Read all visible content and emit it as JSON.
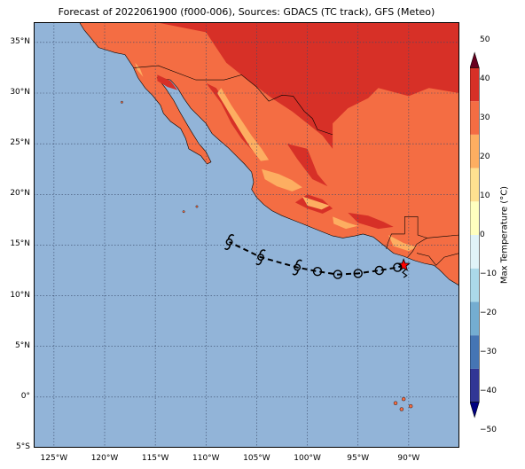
{
  "title": "Forecast of 2022061900 (f000-006), Sources: GDACS (TC track), GFS (Meteo)",
  "map": {
    "lon_range": [
      -127,
      -85
    ],
    "lat_range": [
      -5,
      37
    ],
    "gridlines": "dotted",
    "lat_ticks": [
      {
        "value": 35,
        "label": "35°N"
      },
      {
        "value": 30,
        "label": "30°N"
      },
      {
        "value": 25,
        "label": "25°N"
      },
      {
        "value": 20,
        "label": "20°N"
      },
      {
        "value": 15,
        "label": "15°N"
      },
      {
        "value": 10,
        "label": "10°N"
      },
      {
        "value": 5,
        "label": "5°N"
      },
      {
        "value": 0,
        "label": "0°"
      },
      {
        "value": -5,
        "label": "5°S"
      }
    ],
    "lon_ticks": [
      {
        "value": -125,
        "label": "125°W"
      },
      {
        "value": -120,
        "label": "120°W"
      },
      {
        "value": -115,
        "label": "115°W"
      },
      {
        "value": -110,
        "label": "110°W"
      },
      {
        "value": -105,
        "label": "105°W"
      },
      {
        "value": -100,
        "label": "100°W"
      },
      {
        "value": -95,
        "label": "95°W"
      },
      {
        "value": -90,
        "label": "90°W"
      }
    ],
    "ocean_color": "#92b4d8",
    "storm_track": {
      "current_position": {
        "lon": -90.5,
        "lat": 13.0
      },
      "points": [
        {
          "lon": -90.5,
          "lat": 13.0,
          "marker": "star"
        },
        {
          "lon": -91.1,
          "lat": 12.8,
          "marker": "circle"
        },
        {
          "lon": -92.9,
          "lat": 12.5,
          "marker": "circle"
        },
        {
          "lon": -95.0,
          "lat": 12.2,
          "marker": "circle"
        },
        {
          "lon": -97.0,
          "lat": 12.1,
          "marker": "circle"
        },
        {
          "lon": -99.0,
          "lat": 12.4,
          "marker": "circle"
        },
        {
          "lon": -101.0,
          "lat": 12.8,
          "marker": "hurricane"
        },
        {
          "lon": -104.6,
          "lat": 13.8,
          "marker": "hurricane"
        },
        {
          "lon": -107.7,
          "lat": 15.3,
          "marker": "hurricane"
        }
      ],
      "marker_colors": {
        "star": "#ff0000",
        "track": "#000000"
      }
    }
  },
  "colorbar": {
    "label": "Max Temperature (°C)",
    "levels": [
      -50,
      -40,
      -30,
      -20,
      -10,
      0,
      10,
      20,
      30,
      40,
      50
    ],
    "tick_labels": [
      "50",
      "40",
      "30",
      "20",
      "10",
      "0",
      "−10",
      "−20",
      "−30",
      "−40",
      "−50"
    ],
    "colors": [
      "#313695",
      "#4575b4",
      "#74add1",
      "#abd9e9",
      "#e0f3f8",
      "#ffffbf",
      "#fee090",
      "#fdae61",
      "#f46d43",
      "#d73027",
      "#a50026"
    ],
    "extend": "both"
  }
}
